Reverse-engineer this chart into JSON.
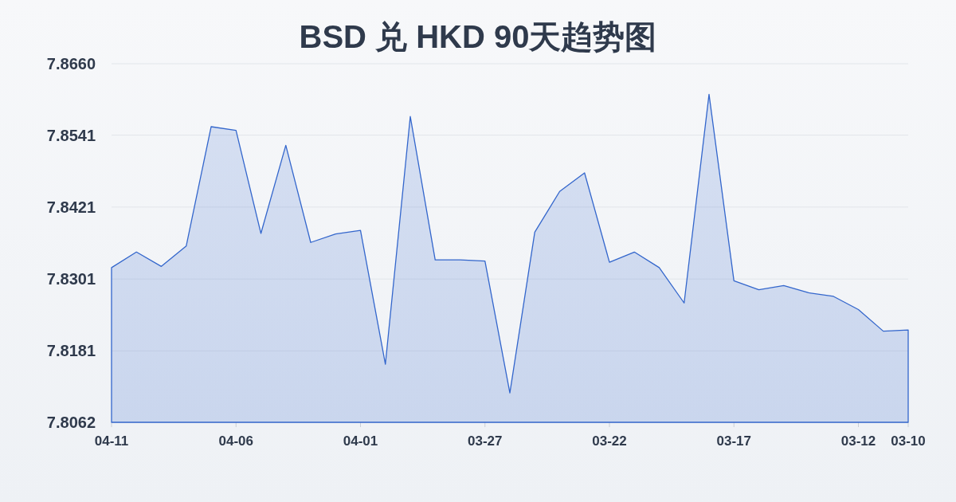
{
  "chart_data": {
    "type": "area",
    "title": "BSD 兑 HKD 90天趋势图",
    "x": [
      "--04-11",
      "--04-10",
      "--04-09",
      "--04-08",
      "--04-07",
      "--04-06",
      "--04-05",
      "--04-04",
      "--04-03",
      "--04-02",
      "--04-01",
      "--03-31",
      "--03-30",
      "--03-29",
      "--03-28",
      "--03-27",
      "--03-26",
      "--03-25",
      "--03-24",
      "--03-23",
      "--03-22",
      "--03-21",
      "--03-20",
      "--03-19",
      "--03-18",
      "--03-17",
      "--03-16",
      "--03-15",
      "--03-14",
      "--03-13",
      "--03-12",
      "--03-11",
      "--03-10"
    ],
    "values": [
      7.832,
      7.8346,
      7.8322,
      7.8356,
      7.8555,
      7.8549,
      7.8377,
      7.8524,
      7.8362,
      7.8376,
      7.8382,
      7.8159,
      7.8572,
      7.8333,
      7.8333,
      7.8331,
      7.8111,
      7.8379,
      7.8447,
      7.8478,
      7.8329,
      7.8346,
      7.832,
      7.8261,
      7.8609,
      7.8298,
      7.8283,
      7.829,
      7.8278,
      7.8272,
      7.825,
      7.8214,
      7.8216
    ],
    "color": "#3366cc",
    "xlim": [
      "--04-11",
      "--03-10"
    ],
    "xticks": [
      {
        "value": "--04-11",
        "label": "04-11"
      },
      {
        "value": "--04-06",
        "label": "04-06"
      },
      {
        "value": "--04-01",
        "label": "04-01"
      },
      {
        "value": "--03-27",
        "label": "03-27"
      },
      {
        "value": "--03-22",
        "label": "03-22"
      },
      {
        "value": "--03-17",
        "label": "03-17"
      },
      {
        "value": "--03-12",
        "label": "03-12"
      },
      {
        "value": "--03-10",
        "label": "03-10"
      }
    ],
    "ylim": [
      7.8062,
      7.866
    ],
    "yticks": [
      7.8062,
      7.8181,
      7.8301,
      7.8421,
      7.8541,
      {
        "value": 7.866,
        "label": "7.8660"
      }
    ],
    "grid": "y"
  }
}
